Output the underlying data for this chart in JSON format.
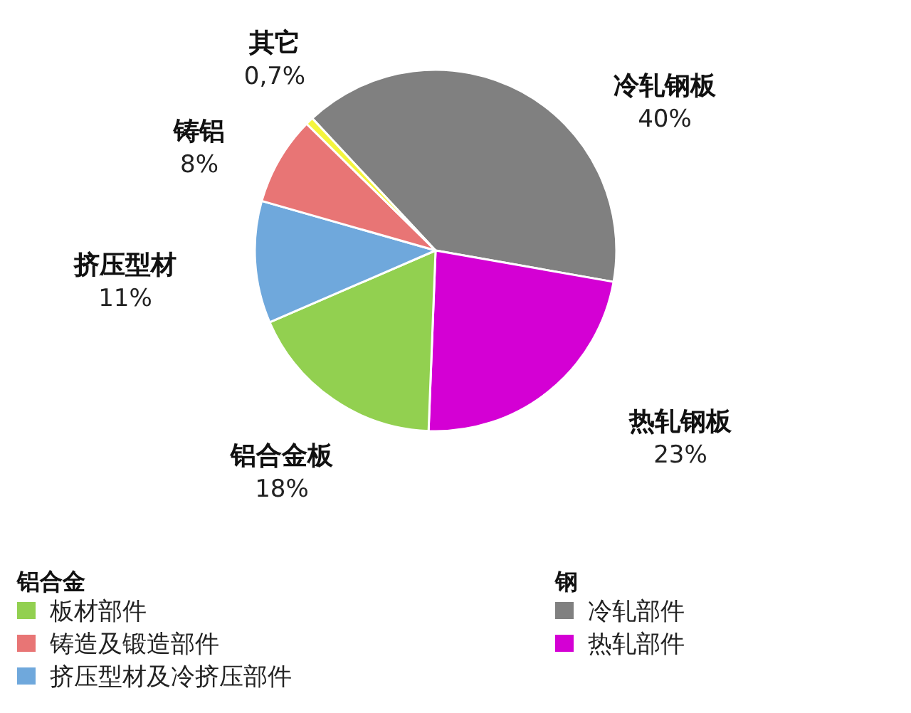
{
  "chart_data": [
    {
      "type": "pie",
      "categories": [
        "冷轧钢板",
        "热轧钢板",
        "铝合金板",
        "挤压型材",
        "铸铝",
        "其它"
      ],
      "values": [
        40,
        23,
        18,
        11,
        8,
        0.7
      ],
      "value_labels": [
        "40%",
        "23%",
        "18%",
        "11%",
        "8%",
        "0,7%"
      ],
      "colors": [
        "#808080",
        "#d400d4",
        "#92d050",
        "#6fa8dc",
        "#e87575",
        "#f5f53c"
      ]
    },
    {
      "type": "other",
      "title": "铝合金",
      "categories": [
        "板材部件",
        "铸造及锻造部件",
        "挤压型材及冷挤压部件"
      ],
      "colors": [
        "#92d050",
        "#e87575",
        "#6fa8dc"
      ]
    },
    {
      "type": "other",
      "title": "钢",
      "categories": [
        "冷轧部件",
        "热轧部件"
      ],
      "colors": [
        "#808080",
        "#d400d4"
      ]
    }
  ]
}
